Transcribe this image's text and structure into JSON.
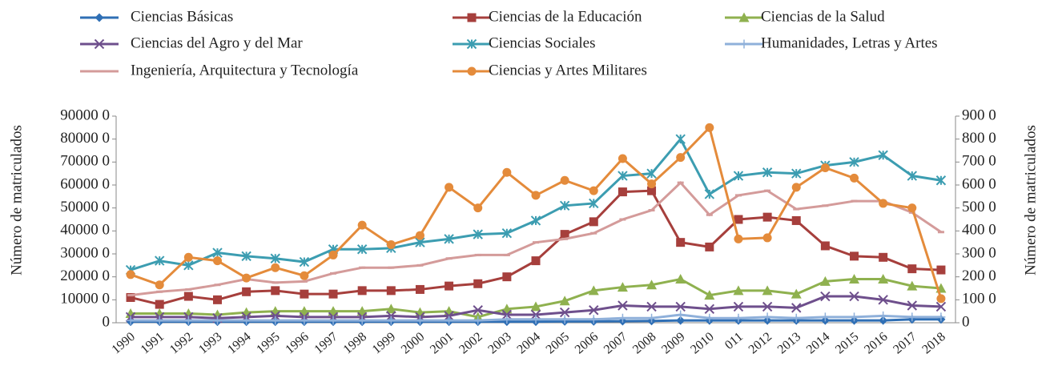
{
  "chart_data": {
    "type": "line",
    "ylabel": "Número de matriculados",
    "y2label": "Número de matriculados",
    "categories": [
      "1990",
      "1991",
      "1992",
      "1993",
      "1994",
      "1995",
      "1996",
      "1997",
      "1998",
      "1999",
      "2000",
      "2001",
      "2002",
      "2003",
      "2004",
      "2005",
      "2006",
      "2007",
      "2008",
      "2009",
      "2010",
      "011",
      "2012",
      "2013",
      "2014",
      "2015",
      "2016",
      "2017",
      "2018"
    ],
    "ylim": [
      0,
      90000
    ],
    "yticks": [
      {
        "value": 0,
        "label": "0"
      },
      {
        "value": 10000,
        "label": "10000 0"
      },
      {
        "value": 20000,
        "label": "20000 0"
      },
      {
        "value": 30000,
        "label": "30000 0"
      },
      {
        "value": 40000,
        "label": "40000 0"
      },
      {
        "value": 50000,
        "label": "50000 0"
      },
      {
        "value": 60000,
        "label": "60000 0"
      },
      {
        "value": 70000,
        "label": "70000 0"
      },
      {
        "value": 80000,
        "label": "80000 0"
      },
      {
        "value": 90000,
        "label": "90000 0"
      }
    ],
    "y2lim": [
      0,
      900
    ],
    "y2ticks": [
      {
        "value": 0,
        "label": "0"
      },
      {
        "value": 100,
        "label": "100 0"
      },
      {
        "value": 200,
        "label": "200 0"
      },
      {
        "value": 300,
        "label": "300 0"
      },
      {
        "value": 400,
        "label": "400 0"
      },
      {
        "value": 500,
        "label": "500 0"
      },
      {
        "value": 600,
        "label": "600 0"
      },
      {
        "value": 700,
        "label": "700 0"
      },
      {
        "value": 800,
        "label": "800 0"
      },
      {
        "value": 900,
        "label": "900 0"
      }
    ],
    "grid": false,
    "series": [
      {
        "name": "Ciencias Básicas",
        "color": "#2f6fb5",
        "marker": "diamond",
        "values": [
          500,
          500,
          500,
          500,
          500,
          500,
          500,
          500,
          500,
          500,
          500,
          500,
          500,
          500,
          500,
          600,
          600,
          700,
          800,
          1000,
          1000,
          1000,
          1000,
          1000,
          1000,
          1000,
          1000,
          1500,
          1500
        ]
      },
      {
        "name": "Ciencias de la Educación",
        "color": "#a63f3c",
        "marker": "square",
        "values": [
          11000,
          8000,
          11500,
          10000,
          13500,
          14000,
          12500,
          12500,
          14000,
          14000,
          14500,
          16000,
          17000,
          20000,
          27000,
          38500,
          44000,
          57000,
          57500,
          35000,
          33000,
          45000,
          46000,
          44500,
          33500,
          29000,
          28500,
          23500,
          23000
        ]
      },
      {
        "name": "Ciencias de la Salud",
        "color": "#8fb14f",
        "marker": "triangle",
        "values": [
          4000,
          4000,
          4000,
          3500,
          4500,
          5000,
          5000,
          5000,
          5000,
          6000,
          4500,
          5000,
          2500,
          6000,
          7000,
          9500,
          14000,
          15500,
          16500,
          19000,
          12000,
          14000,
          14000,
          12500,
          18000,
          19000,
          19000,
          16000,
          15000
        ]
      },
      {
        "name": "Ciencias del Agro y del Mar",
        "color": "#6e4f8c",
        "marker": "x",
        "values": [
          2500,
          2500,
          2500,
          2000,
          2500,
          3000,
          2500,
          2500,
          2500,
          3000,
          2500,
          3000,
          5500,
          3500,
          3500,
          4500,
          5500,
          7500,
          7000,
          7000,
          6000,
          7000,
          7000,
          6500,
          11500,
          11500,
          10000,
          7500,
          7000
        ]
      },
      {
        "name": "Ciencias Sociales",
        "color": "#3c9db1",
        "marker": "star",
        "values": [
          23000,
          27000,
          25000,
          30500,
          29000,
          28000,
          26500,
          32000,
          32000,
          32500,
          35000,
          36500,
          38500,
          39000,
          44500,
          51000,
          52000,
          64000,
          65000,
          80000,
          56000,
          64000,
          65500,
          65000,
          68500,
          70000,
          73000,
          64000,
          62000
        ]
      },
      {
        "name": "Humanidades, Letras y Artes",
        "color": "#8fb0da",
        "marker": "plus",
        "values": [
          1000,
          1000,
          1000,
          1000,
          1000,
          1000,
          1000,
          1000,
          1000,
          1000,
          1000,
          1000,
          1000,
          1500,
          1500,
          1500,
          1500,
          2000,
          2000,
          3500,
          2000,
          2000,
          2500,
          2000,
          2500,
          2500,
          3000,
          2500,
          2500
        ]
      },
      {
        "name": "Ingeniería, Arquitectura y Tecnología",
        "color": "#d49b9a",
        "marker": "dash",
        "values": [
          12000,
          13500,
          14500,
          16500,
          19000,
          17500,
          18000,
          21500,
          24000,
          24000,
          25000,
          28000,
          29500,
          29500,
          35000,
          36500,
          39000,
          45000,
          49000,
          61000,
          47000,
          55500,
          57500,
          49500,
          51000,
          53000,
          53000,
          48000,
          39500
        ]
      },
      {
        "name": "Ciencias y Artes Militares",
        "color": "#e48b3b",
        "marker": "circle",
        "axis": "y2",
        "values": [
          210,
          165,
          285,
          270,
          195,
          240,
          205,
          295,
          425,
          340,
          380,
          590,
          500,
          655,
          555,
          620,
          575,
          715,
          605,
          720,
          850,
          365,
          370,
          590,
          675,
          630,
          520,
          500,
          105
        ]
      }
    ]
  }
}
